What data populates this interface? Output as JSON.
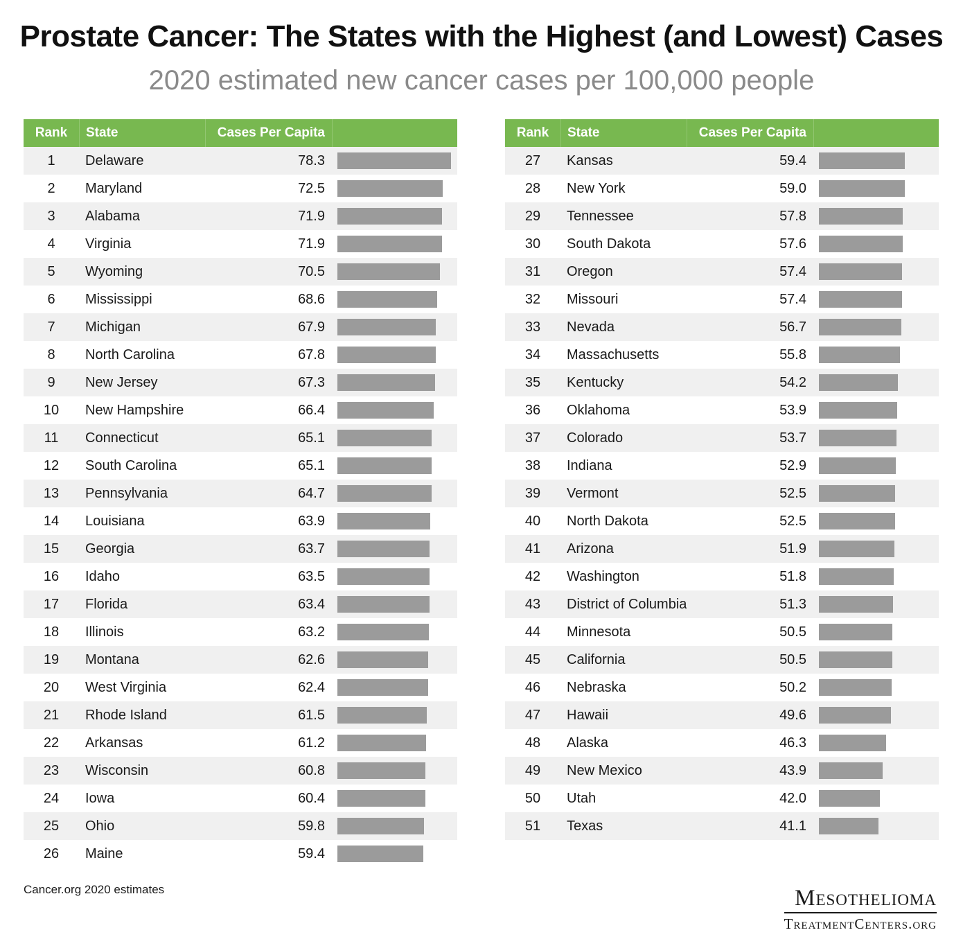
{
  "title": "Prostate Cancer: The States with the Highest (and Lowest) Cases",
  "subtitle": "2020 estimated new cancer cases per 100,000 people",
  "headers": {
    "rank": "Rank",
    "state": "State",
    "value": "Cases Per Capita"
  },
  "source": "Cancer.org 2020 estimates",
  "logo": {
    "line1": "Mesothelioma",
    "line2": "TreatmentCenters.org"
  },
  "colors": {
    "header": "#78b850",
    "bar": "#9b9b9b",
    "row_stripe": "#f0f0f0"
  },
  "chart_data": {
    "type": "table",
    "title": "Prostate Cancer: The States with the Highest (and Lowest) Cases",
    "subtitle": "2020 estimated new cancer cases per 100,000 people",
    "columns": [
      "Rank",
      "State",
      "Cases Per Capita"
    ],
    "bar_max": 78.3,
    "left_rows": [
      {
        "rank": "1",
        "state": "Delaware",
        "value": "78.3"
      },
      {
        "rank": "2",
        "state": "Maryland",
        "value": "72.5"
      },
      {
        "rank": "3",
        "state": "Alabama",
        "value": "71.9"
      },
      {
        "rank": "4",
        "state": "Virginia",
        "value": "71.9"
      },
      {
        "rank": "5",
        "state": "Wyoming",
        "value": "70.5"
      },
      {
        "rank": "6",
        "state": "Mississippi",
        "value": "68.6"
      },
      {
        "rank": "7",
        "state": "Michigan",
        "value": "67.9"
      },
      {
        "rank": "8",
        "state": "North Carolina",
        "value": "67.8"
      },
      {
        "rank": "9",
        "state": "New Jersey",
        "value": "67.3"
      },
      {
        "rank": "10",
        "state": "New Hampshire",
        "value": "66.4"
      },
      {
        "rank": "11",
        "state": "Connecticut",
        "value": "65.1"
      },
      {
        "rank": "12",
        "state": "South Carolina",
        "value": "65.1"
      },
      {
        "rank": "13",
        "state": "Pennsylvania",
        "value": "64.7"
      },
      {
        "rank": "14",
        "state": "Louisiana",
        "value": "63.9"
      },
      {
        "rank": "15",
        "state": "Georgia",
        "value": "63.7"
      },
      {
        "rank": "16",
        "state": "Idaho",
        "value": "63.5"
      },
      {
        "rank": "17",
        "state": "Florida",
        "value": "63.4"
      },
      {
        "rank": "18",
        "state": "Illinois",
        "value": "63.2"
      },
      {
        "rank": "19",
        "state": "Montana",
        "value": "62.6"
      },
      {
        "rank": "20",
        "state": "West Virginia",
        "value": "62.4"
      },
      {
        "rank": "21",
        "state": "Rhode Island",
        "value": "61.5"
      },
      {
        "rank": "22",
        "state": "Arkansas",
        "value": "61.2"
      },
      {
        "rank": "23",
        "state": "Wisconsin",
        "value": "60.8"
      },
      {
        "rank": "24",
        "state": "Iowa",
        "value": "60.4"
      },
      {
        "rank": "25",
        "state": "Ohio",
        "value": "59.8"
      },
      {
        "rank": "26",
        "state": "Maine",
        "value": "59.4"
      }
    ],
    "right_rows": [
      {
        "rank": "27",
        "state": "Kansas",
        "value": "59.4"
      },
      {
        "rank": "28",
        "state": "New York",
        "value": "59.0"
      },
      {
        "rank": "29",
        "state": "Tennessee",
        "value": "57.8"
      },
      {
        "rank": "30",
        "state": "South Dakota",
        "value": "57.6"
      },
      {
        "rank": "31",
        "state": "Oregon",
        "value": "57.4"
      },
      {
        "rank": "32",
        "state": "Missouri",
        "value": "57.4"
      },
      {
        "rank": "33",
        "state": "Nevada",
        "value": "56.7"
      },
      {
        "rank": "34",
        "state": "Massachusetts",
        "value": "55.8"
      },
      {
        "rank": "35",
        "state": "Kentucky",
        "value": "54.2"
      },
      {
        "rank": "36",
        "state": "Oklahoma",
        "value": "53.9"
      },
      {
        "rank": "37",
        "state": "Colorado",
        "value": "53.7"
      },
      {
        "rank": "38",
        "state": "Indiana",
        "value": "52.9"
      },
      {
        "rank": "39",
        "state": "Vermont",
        "value": "52.5"
      },
      {
        "rank": "40",
        "state": "North Dakota",
        "value": "52.5"
      },
      {
        "rank": "41",
        "state": "Arizona",
        "value": "51.9"
      },
      {
        "rank": "42",
        "state": "Washington",
        "value": "51.8"
      },
      {
        "rank": "43",
        "state": "District of Columbia",
        "value": "51.3"
      },
      {
        "rank": "44",
        "state": "Minnesota",
        "value": "50.5"
      },
      {
        "rank": "45",
        "state": "California",
        "value": "50.5"
      },
      {
        "rank": "46",
        "state": "Nebraska",
        "value": "50.2"
      },
      {
        "rank": "47",
        "state": "Hawaii",
        "value": "49.6"
      },
      {
        "rank": "48",
        "state": "Alaska",
        "value": "46.3"
      },
      {
        "rank": "49",
        "state": "New Mexico",
        "value": "43.9"
      },
      {
        "rank": "50",
        "state": "Utah",
        "value": "42.0"
      },
      {
        "rank": "51",
        "state": "Texas",
        "value": "41.1"
      }
    ]
  }
}
